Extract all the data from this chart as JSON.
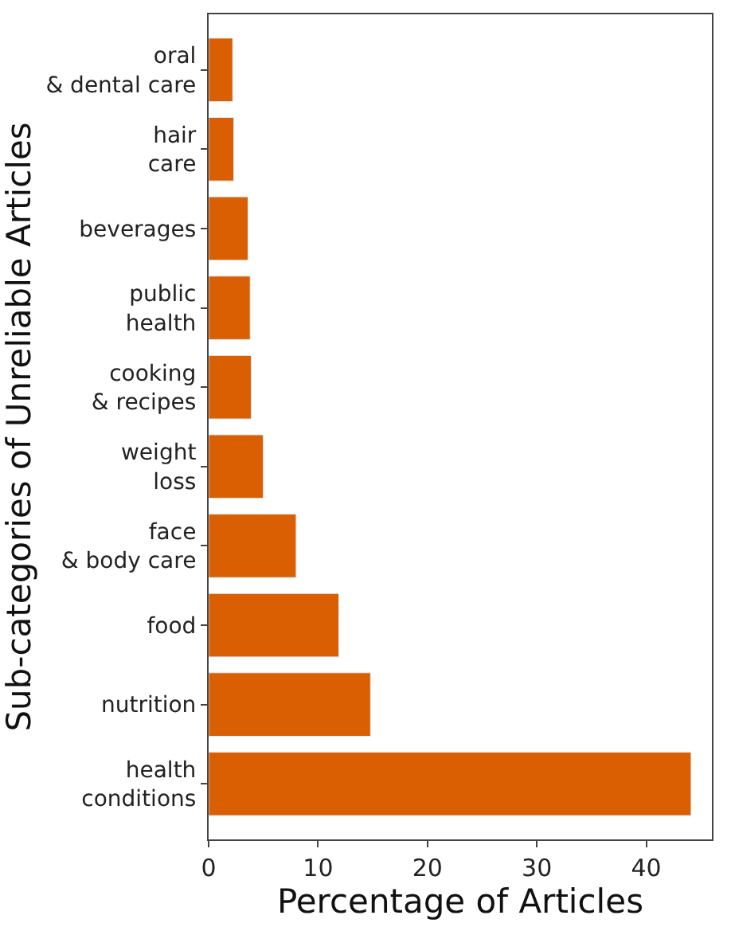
{
  "chart_data": {
    "type": "bar",
    "orientation": "horizontal",
    "xlabel": "Percentage of Articles",
    "ylabel": "Sub-categories of Unreliable Articles",
    "categories": [
      "oral\n& dental care",
      "hair\ncare",
      "beverages",
      "public\nhealth",
      "cooking\n& recipes",
      "weight\nloss",
      "face\n& body care",
      "food",
      "nutrition",
      "health\nconditions"
    ],
    "values": [
      2.2,
      2.3,
      3.6,
      3.8,
      3.9,
      5.0,
      8.0,
      11.9,
      14.8,
      44.1
    ],
    "color": "#d95f02",
    "xlim": [
      0,
      46
    ],
    "xticks": [
      0,
      10,
      20,
      30,
      40
    ]
  }
}
